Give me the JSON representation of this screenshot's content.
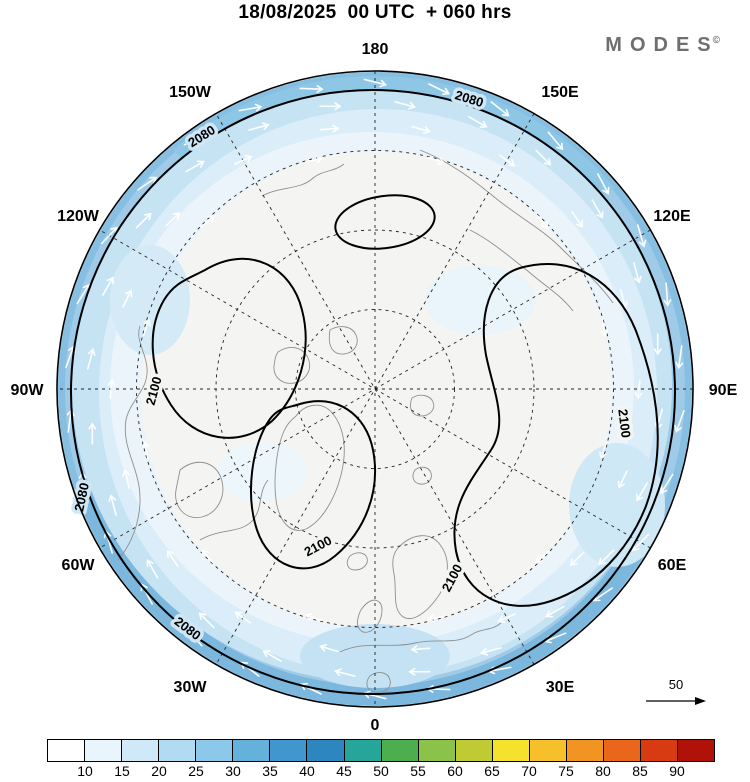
{
  "header": {
    "title": "18/08/2025  00 UTC  + 060 hrs",
    "brand": "MODES",
    "brand_mark": "©"
  },
  "map": {
    "longitude_labels": [
      "180",
      "150W",
      "150E",
      "120W",
      "120E",
      "90W",
      "90E",
      "60W",
      "60E",
      "30W",
      "30E",
      "0"
    ],
    "contour_labels": [
      "2080",
      "2080",
      "2080",
      "2080",
      "2100",
      "2100",
      "2100",
      "2100"
    ]
  },
  "wind_scale": {
    "label": "50"
  },
  "colorbar": {
    "tick_labels": [
      "10",
      "15",
      "20",
      "25",
      "30",
      "35",
      "40",
      "45",
      "50",
      "55",
      "60",
      "65",
      "70",
      "75",
      "80",
      "85",
      "90"
    ],
    "colors": [
      "#ffffff",
      "#e8f5fc",
      "#cfe9f8",
      "#b0dbf2",
      "#8cc8e9",
      "#64b1dc",
      "#3f97cd",
      "#2e86be",
      "#26a69a",
      "#4cae4c",
      "#8bc34a",
      "#c0ca33",
      "#f4e22c",
      "#f5c02a",
      "#f29422",
      "#e9661a",
      "#d83a12",
      "#b01108"
    ]
  },
  "chart_data": {
    "type": "heatmap",
    "title": "18/08/2025 00 UTC + 060 hrs",
    "projection": "north-polar-stereographic",
    "contour_labeled_levels": [
      2080,
      2100
    ],
    "shading_tick_values": [
      10,
      15,
      20,
      25,
      30,
      35,
      40,
      45,
      50,
      55,
      60,
      65,
      70,
      75,
      80,
      85,
      90
    ],
    "shading_colors": [
      "#ffffff",
      "#e8f5fc",
      "#cfe9f8",
      "#b0dbf2",
      "#8cc8e9",
      "#64b1dc",
      "#3f97cd",
      "#2e86be",
      "#26a69a",
      "#4cae4c",
      "#8bc34a",
      "#c0ca33",
      "#f4e22c",
      "#f5c02a",
      "#f29422",
      "#e9661a",
      "#d83a12",
      "#b01108"
    ],
    "reference_vector_value": 50,
    "longitude_ring_labels": [
      "180",
      "150W",
      "150E",
      "120W",
      "120E",
      "90W",
      "90E",
      "60W",
      "60E",
      "30W",
      "30E",
      "0"
    ],
    "legend_position": "bottom"
  }
}
